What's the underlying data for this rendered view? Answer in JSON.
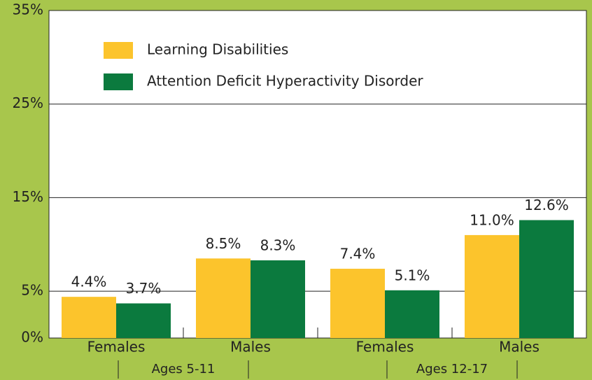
{
  "chart_data": {
    "type": "bar",
    "categories": [
      "Females",
      "Males",
      "Females",
      "Males"
    ],
    "groups": [
      "Ages 5-11",
      "Ages 12-17"
    ],
    "series": [
      {
        "name": "Learning Disabilities",
        "color": "#fcc42c",
        "values": [
          4.4,
          8.5,
          7.4,
          11.0
        ],
        "value_labels": [
          "4.4%",
          "8.5%",
          "7.4%",
          "11.0%"
        ]
      },
      {
        "name": "Attention Deficit Hyperactivity Disorder",
        "color": "#0b7a3e",
        "values": [
          3.7,
          8.3,
          5.1,
          12.6
        ],
        "value_labels": [
          "3.7%",
          "8.3%",
          "5.1%",
          "12.6%"
        ]
      }
    ],
    "ylim": [
      0,
      35
    ],
    "yticks": [
      {
        "value": 0,
        "label": "0%"
      },
      {
        "value": 5,
        "label": "5%"
      },
      {
        "value": 15,
        "label": "15%"
      },
      {
        "value": 25,
        "label": "25%"
      },
      {
        "value": 35,
        "label": "35%"
      }
    ],
    "grid": true,
    "legend": "top-left"
  }
}
